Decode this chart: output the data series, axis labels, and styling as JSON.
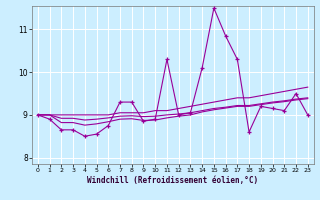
{
  "background_color": "#cceeff",
  "line_color": "#990099",
  "xlabel": "Windchill (Refroidissement éolien,°C)",
  "xlim": [
    -0.5,
    23.5
  ],
  "ylim": [
    7.85,
    11.55
  ],
  "yticks": [
    8,
    9,
    10,
    11
  ],
  "xticks": [
    0,
    1,
    2,
    3,
    4,
    5,
    6,
    7,
    8,
    9,
    10,
    11,
    12,
    13,
    14,
    15,
    16,
    17,
    18,
    19,
    20,
    21,
    22,
    23
  ],
  "x": [
    0,
    1,
    2,
    3,
    4,
    5,
    6,
    7,
    8,
    9,
    10,
    11,
    12,
    13,
    14,
    15,
    16,
    17,
    18,
    19,
    20,
    21,
    22,
    23
  ],
  "y_main": [
    9.0,
    8.9,
    8.65,
    8.65,
    8.5,
    8.55,
    8.75,
    9.3,
    9.3,
    8.85,
    8.9,
    10.3,
    9.0,
    9.05,
    10.1,
    11.5,
    10.85,
    10.3,
    8.6,
    9.2,
    9.15,
    9.1,
    9.5,
    9.0
  ],
  "y_line1": [
    9.0,
    9.0,
    9.0,
    9.0,
    9.0,
    9.0,
    9.0,
    9.05,
    9.05,
    9.05,
    9.1,
    9.1,
    9.15,
    9.2,
    9.25,
    9.3,
    9.35,
    9.4,
    9.4,
    9.45,
    9.5,
    9.55,
    9.6,
    9.65
  ],
  "y_line2": [
    9.0,
    9.0,
    8.92,
    8.92,
    8.88,
    8.9,
    8.93,
    8.97,
    8.98,
    8.96,
    8.97,
    9.0,
    9.02,
    9.05,
    9.1,
    9.15,
    9.18,
    9.22,
    9.22,
    9.26,
    9.3,
    9.33,
    9.37,
    9.4
  ],
  "y_line3": [
    9.0,
    9.0,
    8.82,
    8.82,
    8.76,
    8.79,
    8.84,
    8.9,
    8.91,
    8.87,
    8.88,
    8.93,
    8.97,
    9.0,
    9.07,
    9.12,
    9.16,
    9.2,
    9.2,
    9.24,
    9.28,
    9.31,
    9.35,
    9.38
  ]
}
